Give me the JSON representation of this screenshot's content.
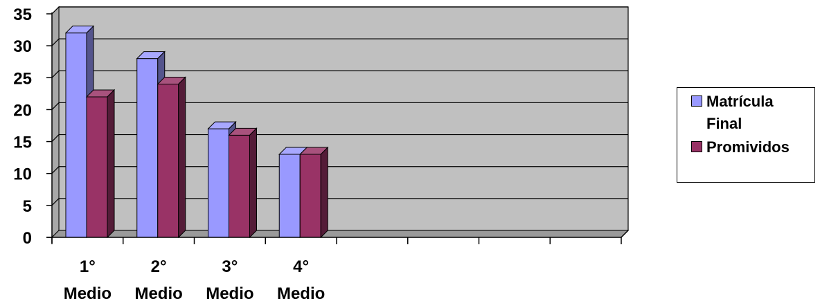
{
  "chart_data": {
    "type": "bar",
    "categories": [
      [
        "1°",
        "Medio"
      ],
      [
        "2°",
        "Medio"
      ],
      [
        "3°",
        "Medio"
      ],
      [
        "4°",
        "Medio"
      ],
      [
        "",
        ""
      ],
      [
        "",
        ""
      ],
      [
        "",
        ""
      ],
      [
        "",
        ""
      ]
    ],
    "series": [
      {
        "name": "Matrícula Final",
        "values": [
          32,
          28,
          17,
          13,
          null,
          null,
          null,
          null
        ],
        "color": "#9999ff"
      },
      {
        "name": "Promividos",
        "values": [
          22,
          24,
          16,
          13,
          null,
          null,
          null,
          null
        ],
        "color": "#993366"
      }
    ],
    "yticks": [
      0,
      5,
      10,
      15,
      20,
      25,
      30,
      35
    ],
    "ylim": [
      0,
      35
    ],
    "grid": true,
    "legend_position": "right",
    "plot_background": "#c0c0c0"
  }
}
